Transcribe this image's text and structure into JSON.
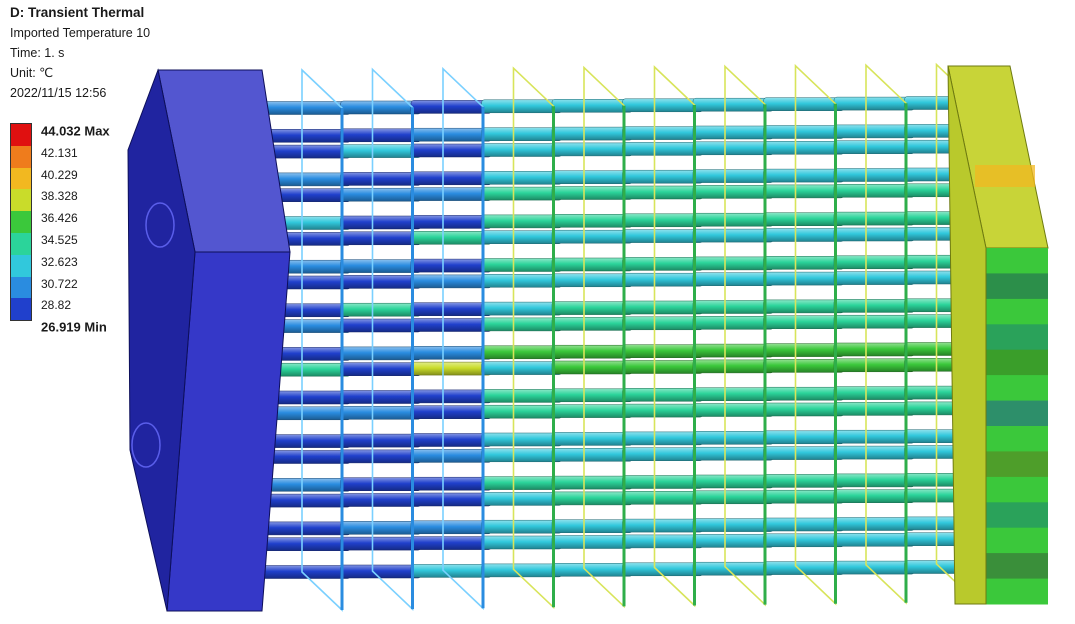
{
  "header": {
    "title": "D: Transient Thermal",
    "result_name": "Imported Temperature 10",
    "time": "Time: 1. s",
    "unit": "Unit: ℃",
    "datetime": "2022/11/15 12:56"
  },
  "legend": {
    "max_label": "44.032 Max",
    "min_label": "26.919 Min",
    "levels": [
      "42.131",
      "40.229",
      "38.328",
      "36.426",
      "34.525",
      "32.623",
      "30.722",
      "28.82"
    ],
    "colors": [
      "#e01010",
      "#ef7c1c",
      "#f2b820",
      "#c9dc2a",
      "#3bc83b",
      "#2bd49a",
      "#31c8dc",
      "#2a8ce0",
      "#2040cc"
    ]
  },
  "model": {
    "fin_count": 10,
    "tube_rows": 22,
    "tube_columns": 11,
    "colors": {
      "inlet_block": "#3538c8",
      "inlet_side": "#2024a0",
      "outlet_block": "#c8d438",
      "outlet_side_base": "#2f9a2f",
      "fin_edge": "#d8e45a"
    }
  }
}
